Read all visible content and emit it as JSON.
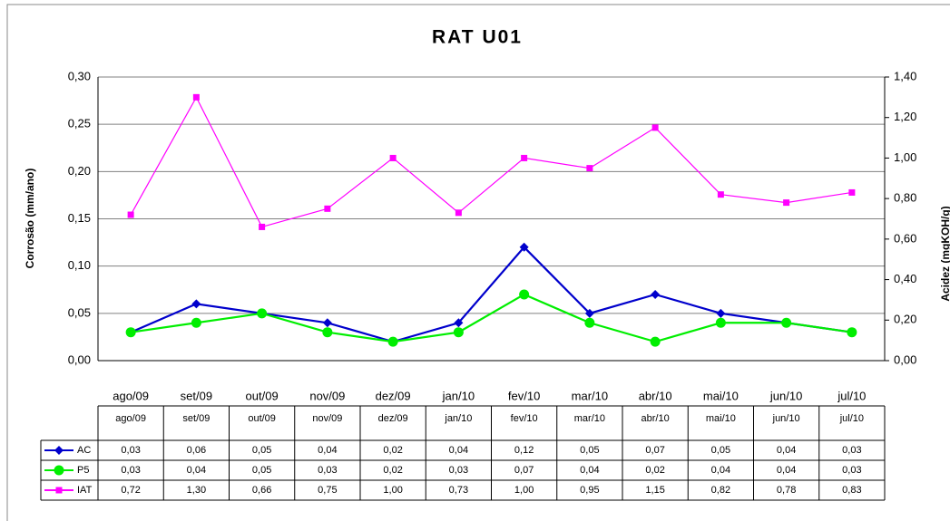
{
  "chart_data": {
    "type": "line",
    "title": "RAT U01",
    "ylabel": "Corrosão (mm/ano)",
    "y2label": "Acidez (mgKOH/g)",
    "categories": [
      "ago/09",
      "set/09",
      "out/09",
      "nov/09",
      "dez/09",
      "jan/10",
      "fev/10",
      "mar/10",
      "abr/10",
      "mai/10",
      "jun/10",
      "jul/10"
    ],
    "ylim": [
      0,
      0.3
    ],
    "yticks": [
      {
        "value": 0,
        "label": "0,00"
      },
      {
        "value": 0.05,
        "label": "0,05"
      },
      {
        "value": 0.1,
        "label": "0,10"
      },
      {
        "value": 0.15,
        "label": "0,15"
      },
      {
        "value": 0.2,
        "label": "0,20"
      },
      {
        "value": 0.25,
        "label": "0,25"
      },
      {
        "value": 0.3,
        "label": "0,30"
      }
    ],
    "y2lim": [
      0,
      1.4
    ],
    "y2ticks": [
      {
        "value": 0,
        "label": "0,00"
      },
      {
        "value": 0.2,
        "label": "0,20"
      },
      {
        "value": 0.4,
        "label": "0,40"
      },
      {
        "value": 0.6,
        "label": "0,60"
      },
      {
        "value": 0.8,
        "label": "0,80"
      },
      {
        "value": 1.0,
        "label": "1,00"
      },
      {
        "value": 1.2,
        "label": "1,20"
      },
      {
        "value": 1.4,
        "label": "1,40"
      }
    ],
    "grid": true,
    "series": [
      {
        "name": "AC",
        "color": "#0000cc",
        "marker": "diamond",
        "values": [
          0.03,
          0.06,
          0.05,
          0.04,
          0.02,
          0.04,
          0.12,
          0.05,
          0.07,
          0.05,
          0.04,
          0.03
        ],
        "value_labels": [
          "0,03",
          "0,06",
          "0,05",
          "0,04",
          "0,02",
          "0,04",
          "0,12",
          "0,05",
          "0,07",
          "0,05",
          "0,04",
          "0,03"
        ]
      },
      {
        "name": "P5",
        "color": "#00ee00",
        "marker": "circle",
        "values": [
          0.03,
          0.04,
          0.05,
          0.03,
          0.02,
          0.03,
          0.07,
          0.04,
          0.02,
          0.04,
          0.04,
          0.03
        ],
        "value_labels": [
          "0,03",
          "0,04",
          "0,05",
          "0,03",
          "0,02",
          "0,03",
          "0,07",
          "0,04",
          "0,02",
          "0,04",
          "0,04",
          "0,03"
        ]
      },
      {
        "name": "IAT",
        "color": "#ff00ff",
        "marker": "square",
        "axis": "y2",
        "values": [
          0.72,
          1.3,
          0.66,
          0.75,
          1.0,
          0.73,
          1.0,
          0.95,
          1.15,
          0.82,
          0.78,
          0.83
        ],
        "value_labels": [
          "0,72",
          "1,30",
          "0,66",
          "0,75",
          "1,00",
          "0,73",
          "1,00",
          "0,95",
          "1,15",
          "0,82",
          "0,78",
          "0,83"
        ]
      }
    ]
  }
}
